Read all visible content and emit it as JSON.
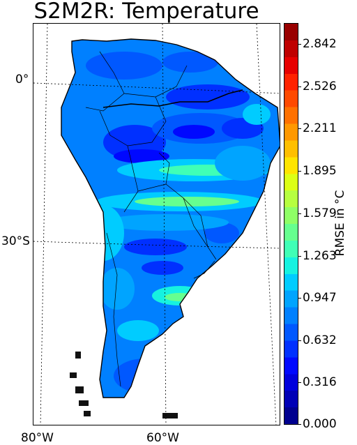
{
  "title": "S2M2R: Temperature",
  "map": {
    "lat_labels": [
      "0°",
      "30°S"
    ],
    "lon_labels": [
      "80°W",
      "60°W"
    ],
    "lat_range": [
      10,
      -58
    ],
    "lon_range": [
      -82,
      -34
    ],
    "field": "RMSE of temperature",
    "land_mask_color": "#ffffff",
    "coastline_color": "#000000",
    "gridline_style": "dotted"
  },
  "colorbar": {
    "label": "RMSE in °C",
    "min": 0.0,
    "max": 3.0,
    "tick_labels": [
      "0.000",
      "0.316",
      "0.632",
      "0.947",
      "1.263",
      "1.579",
      "1.895",
      "2.211",
      "2.526",
      "2.842"
    ],
    "colors": [
      "#00008f",
      "#0000b6",
      "#0000dc",
      "#0008ff",
      "#0030ff",
      "#0058ff",
      "#0080ff",
      "#00a4ff",
      "#00ccff",
      "#16f2e0",
      "#40ffb6",
      "#66ff8f",
      "#8fff66",
      "#b6ff40",
      "#dcff16",
      "#ffe400",
      "#ffbf00",
      "#ff9800",
      "#ff7100",
      "#ff4a00",
      "#ff2200",
      "#e60000",
      "#bf0000",
      "#990000"
    ]
  }
}
